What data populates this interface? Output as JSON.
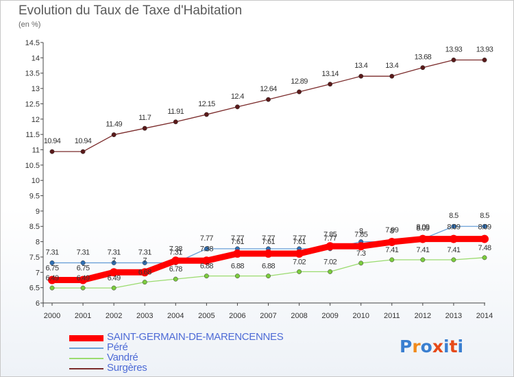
{
  "title": "Evolution du Taux de Taxe d'Habitation",
  "subtitle": "(en %)",
  "logo": {
    "text": "Proxiti",
    "letters": [
      "P",
      "r",
      "o",
      "x",
      "i",
      "t",
      "i"
    ],
    "colors": [
      "#3a7fd0",
      "#f08a1c",
      "#3a7fd0",
      "#e64a19",
      "#3a7fd0",
      "#e64a19",
      "#3a7fd0"
    ]
  },
  "chart_data": {
    "type": "line",
    "title": "Evolution du Taux de Taxe d'Habitation",
    "ylabel": "(en %)",
    "xlabel": "",
    "ylim": [
      6,
      14.5
    ],
    "yticks": [
      6,
      6.5,
      7,
      7.5,
      8,
      8.5,
      9,
      9.5,
      10,
      10.5,
      11,
      11.5,
      12,
      12.5,
      13,
      13.5,
      14,
      14.5
    ],
    "x": [
      "2000",
      "2001",
      "2002",
      "2003",
      "2004",
      "2005",
      "2006",
      "2007",
      "2008",
      "2009",
      "2010",
      "2011",
      "2012",
      "2013",
      "2014"
    ],
    "grid": false,
    "legend_position": "bottom-left",
    "series": [
      {
        "name": "SAINT-GERMAIN-DE-MARENCENNES",
        "color": "#ff0000",
        "markerColor": "#ff0000",
        "width": 9,
        "values": [
          6.75,
          6.75,
          7.0,
          7.0,
          7.38,
          7.38,
          7.61,
          7.61,
          7.61,
          7.85,
          7.85,
          7.99,
          8.09,
          8.09,
          8.09
        ],
        "labels": [
          "6.75",
          "6.75",
          "7",
          "7",
          "7.38",
          "7.38",
          "7.61",
          "7.61",
          "7.61",
          "7.85",
          "7.85",
          "7.99",
          "8.09",
          "8.09",
          "8.09"
        ]
      },
      {
        "name": "Péré",
        "color": "#6aa0d8",
        "markerColor": "#2f6fb3",
        "width": 1.3,
        "values": [
          7.31,
          7.31,
          7.31,
          7.31,
          7.31,
          7.77,
          7.77,
          7.77,
          7.77,
          7.77,
          8.0,
          8.0,
          8.09,
          8.5,
          8.5
        ],
        "labels": [
          "7.31",
          "7.31",
          "7.31",
          "7.31",
          "7.31",
          "7.77",
          "7.77",
          "7.77",
          "7.77",
          "7.77",
          "8",
          "8",
          "8.09",
          "8.5",
          "8.5"
        ]
      },
      {
        "name": "Vandré",
        "color": "#9adb6e",
        "markerColor": "#7ccc3e",
        "width": 1.3,
        "values": [
          6.49,
          6.49,
          6.49,
          6.68,
          6.78,
          6.88,
          6.88,
          6.88,
          7.02,
          7.02,
          7.3,
          7.41,
          7.41,
          7.41,
          7.48
        ],
        "labels": [
          "6.49",
          "6.49",
          "6.49",
          "6.68",
          "6.78",
          "6.88",
          "6.88",
          "6.88",
          "7.02",
          "7.02",
          "7.3",
          "7.41",
          "7.41",
          "7.41",
          "7.48"
        ]
      },
      {
        "name": "Surgères",
        "color": "#7a2a2a",
        "markerColor": "#5a1a1a",
        "width": 1.3,
        "values": [
          10.94,
          10.94,
          11.49,
          11.7,
          11.91,
          12.15,
          12.4,
          12.64,
          12.89,
          13.14,
          13.4,
          13.4,
          13.68,
          13.93,
          13.93
        ],
        "labels": [
          "10.94",
          "10.94",
          "11.49",
          "11.7",
          "11.91",
          "12.15",
          "12.4",
          "12.64",
          "12.89",
          "13.14",
          "13.4",
          "13.4",
          "13.68",
          "13.93",
          "13.93"
        ]
      }
    ]
  }
}
